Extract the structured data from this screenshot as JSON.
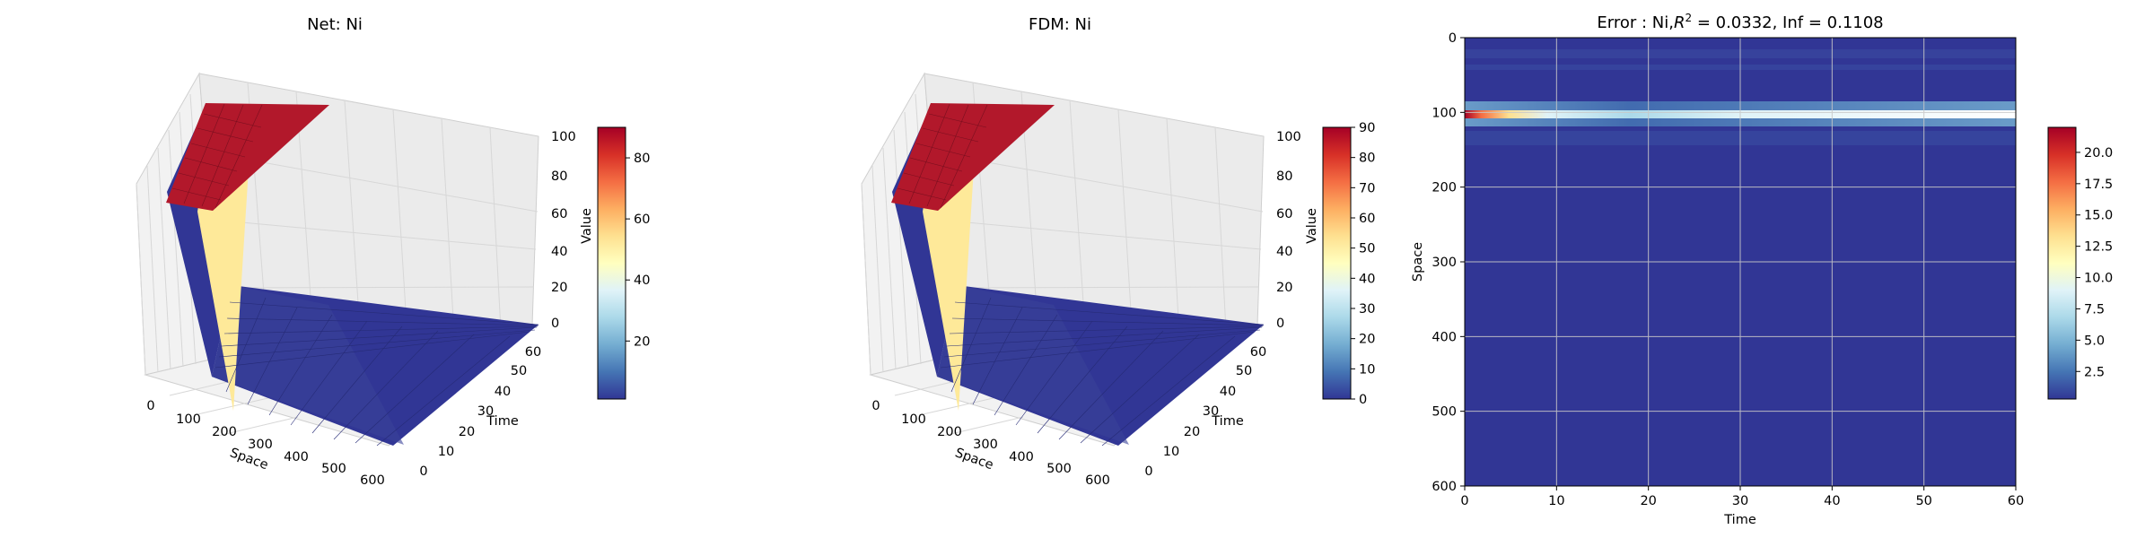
{
  "chart_data": [
    {
      "type": "surface3d",
      "title": "Net: Ni",
      "xlabel": "Space",
      "ylabel": "Time",
      "zlabel": "Value",
      "xlim": [
        0,
        600
      ],
      "ylim": [
        0,
        60
      ],
      "zlim": [
        0,
        100
      ],
      "x_ticks": [
        0,
        100,
        200,
        300,
        400,
        500,
        600
      ],
      "y_ticks": [
        0,
        10,
        20,
        30,
        40,
        50,
        60
      ],
      "z_ticks": [
        0,
        20,
        40,
        60,
        80,
        100
      ],
      "surface": {
        "high_value": 90,
        "low_value": 1,
        "step_at_space": 100
      },
      "colorbar": {
        "min": 1,
        "max": 90,
        "ticks": [
          20,
          40,
          60,
          80
        ],
        "colormap": "RdYlBu_r"
      }
    },
    {
      "type": "surface3d",
      "title": "FDM: Ni",
      "xlabel": "Space",
      "ylabel": "Time",
      "zlabel": "Value",
      "xlim": [
        0,
        600
      ],
      "ylim": [
        0,
        60
      ],
      "zlim": [
        0,
        100
      ],
      "x_ticks": [
        0,
        100,
        200,
        300,
        400,
        500,
        600
      ],
      "y_ticks": [
        0,
        10,
        20,
        30,
        40,
        50,
        60
      ],
      "z_ticks": [
        0,
        20,
        40,
        60,
        80,
        100
      ],
      "surface": {
        "high_value": 90,
        "low_value": 0,
        "step_at_space": 100
      },
      "colorbar": {
        "min": 0,
        "max": 90,
        "ticks": [
          0,
          10,
          20,
          30,
          40,
          50,
          60,
          70,
          80,
          90
        ],
        "colormap": "RdYlBu_r"
      }
    },
    {
      "type": "heatmap",
      "title_prefix": "Error : Ni,",
      "title_r": "R",
      "title_sup": "2",
      "title_suffix": " = 0.0332, Inf = 0.1108",
      "xlabel": "Time",
      "ylabel": "Space",
      "xlim": [
        0,
        60
      ],
      "ylim": [
        600,
        0
      ],
      "x_ticks": [
        0,
        10,
        20,
        30,
        40,
        50,
        60
      ],
      "y_ticks": [
        0,
        100,
        200,
        300,
        400,
        500,
        600
      ],
      "grid": true,
      "error_band": {
        "space_center": 102,
        "peak_value": 22,
        "peak_time": 0
      },
      "colorbar": {
        "min": 0.3,
        "max": 22,
        "ticks": [
          2.5,
          5.0,
          7.5,
          10.0,
          12.5,
          15.0,
          17.5,
          20.0
        ],
        "colormap": "RdYlBu_r"
      }
    }
  ],
  "tick_text": {
    "c0": {
      "x": [
        "0",
        "100",
        "200",
        "300",
        "400",
        "500",
        "600"
      ],
      "y": [
        "0",
        "10",
        "20",
        "30",
        "40",
        "50",
        "60"
      ],
      "z": [
        "0",
        "20",
        "40",
        "60",
        "80",
        "100"
      ],
      "cb": [
        "20",
        "40",
        "60",
        "80"
      ]
    },
    "c1": {
      "x": [
        "0",
        "100",
        "200",
        "300",
        "400",
        "500",
        "600"
      ],
      "y": [
        "0",
        "10",
        "20",
        "30",
        "40",
        "50",
        "60"
      ],
      "z": [
        "0",
        "20",
        "40",
        "60",
        "80",
        "100"
      ],
      "cb": [
        "0",
        "10",
        "20",
        "30",
        "40",
        "50",
        "60",
        "70",
        "80",
        "90"
      ]
    },
    "c2": {
      "x": [
        "0",
        "10",
        "20",
        "30",
        "40",
        "50",
        "60"
      ],
      "y": [
        "0",
        "100",
        "200",
        "300",
        "400",
        "500",
        "600"
      ],
      "cb": [
        "2.5",
        "5.0",
        "7.5",
        "10.0",
        "12.5",
        "15.0",
        "17.5",
        "20.0"
      ]
    }
  }
}
